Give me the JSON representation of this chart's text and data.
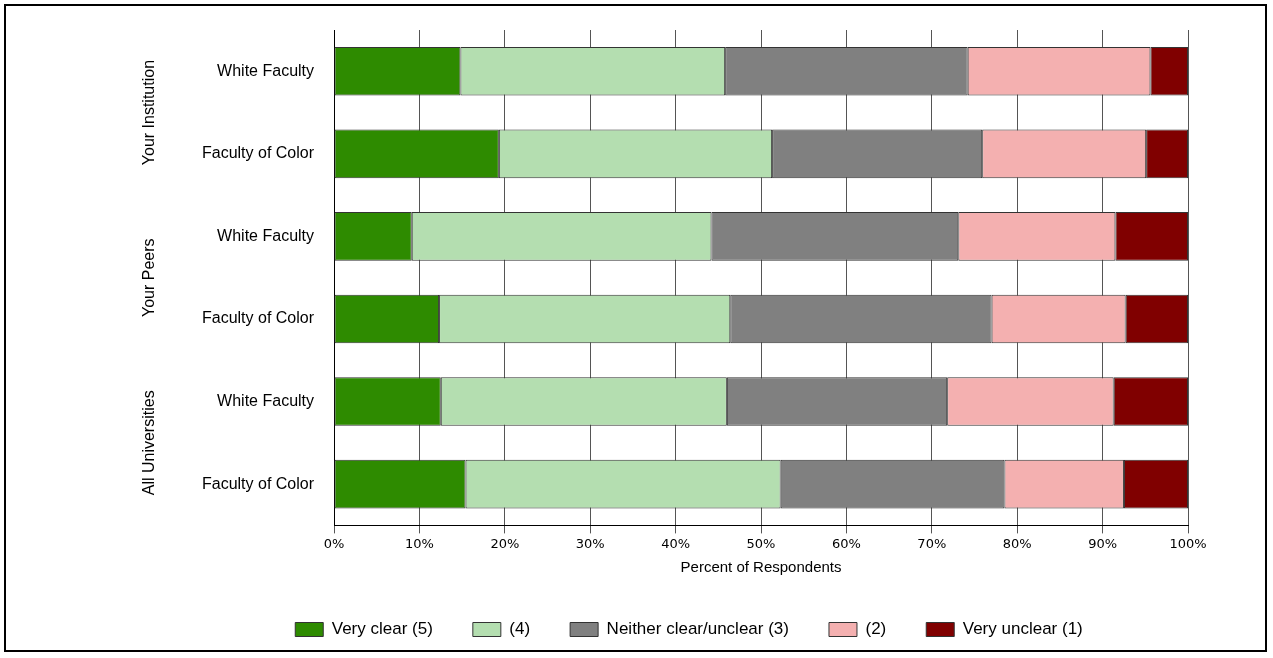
{
  "chart_data": {
    "type": "bar",
    "orientation": "horizontal",
    "stacked": true,
    "xlabel": "Percent of Respondents",
    "categories": [
      "White Faculty",
      "Faculty of Color",
      "White Faculty",
      "Faculty of Color",
      "White Faculty",
      "Faculty of Color"
    ],
    "series": [
      {
        "name": "Very clear (5)",
        "color": "#2e8b00",
        "values": [
          14.8,
          19.3,
          9.1,
          12.3,
          12.5,
          15.4
        ]
      },
      {
        "name": "(4)",
        "color": "#b4deb0",
        "values": [
          31.0,
          32.0,
          35.1,
          34.1,
          33.5,
          36.9
        ]
      },
      {
        "name": "Neither clear/unclear (3)",
        "color": "#808080",
        "values": [
          28.4,
          24.6,
          28.9,
          30.6,
          25.8,
          26.2
        ]
      },
      {
        "name": "(2)",
        "color": "#f4b0b0",
        "values": [
          21.4,
          19.2,
          18.4,
          15.7,
          19.5,
          14.0
        ]
      },
      {
        "name": "Very unclear (1)",
        "color": "#800000",
        "values": [
          4.4,
          4.9,
          8.5,
          7.3,
          8.7,
          7.5
        ]
      }
    ],
    "xlim": [
      0,
      100
    ],
    "xticks": [
      {
        "value": 0,
        "label": "0%"
      },
      {
        "value": 10,
        "label": "10%"
      },
      {
        "value": 20,
        "label": "20%"
      },
      {
        "value": 30,
        "label": "30%"
      },
      {
        "value": 40,
        "label": "40%"
      },
      {
        "value": 50,
        "label": "50%"
      },
      {
        "value": 60,
        "label": "60%"
      },
      {
        "value": 70,
        "label": "70%"
      },
      {
        "value": 80,
        "label": "80%"
      },
      {
        "value": 90,
        "label": "90%"
      },
      {
        "value": 100,
        "label": "100%"
      }
    ],
    "annotations": [
      "Your Institution",
      "Your Peers",
      "All Universities"
    ],
    "grid": "x",
    "legend": "bottom"
  }
}
